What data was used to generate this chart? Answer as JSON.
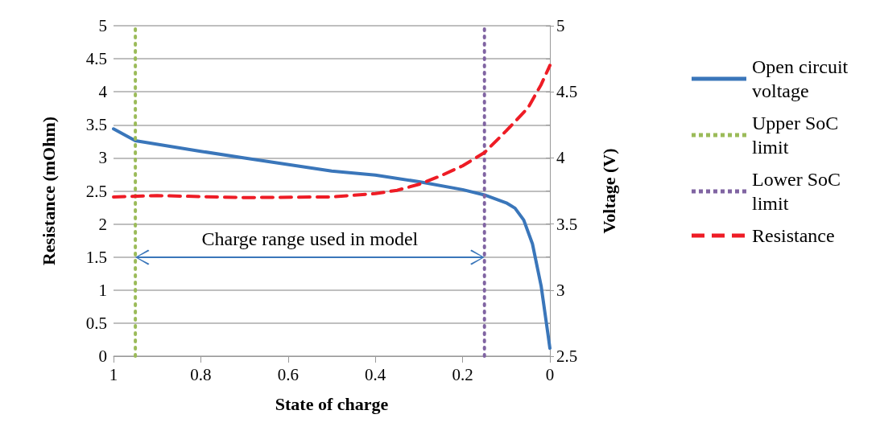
{
  "chart_data": {
    "type": "line",
    "xlabel": "State of charge",
    "ylabel": "Resistance (mOhm)",
    "y2label": "Voltage (V)",
    "xlim": [
      1,
      0
    ],
    "xticks": [
      1,
      0.8,
      0.6,
      0.4,
      0.2,
      0
    ],
    "ylim": [
      0,
      5
    ],
    "yticks": [
      0,
      0.5,
      1,
      1.5,
      2,
      2.5,
      3,
      3.5,
      4,
      4.5,
      5
    ],
    "y2lim": [
      2.5,
      5
    ],
    "y2ticks": [
      2.5,
      3,
      3.5,
      4,
      4.5,
      5
    ],
    "grid": "y",
    "legend": "right",
    "marker": "none",
    "series": [
      {
        "name": "Open circuit voltage",
        "color": "#3a76ba",
        "axis": "y2",
        "line_style": "solid",
        "x": [
          1,
          0.95,
          0.8,
          0.7,
          0.5,
          0.4,
          0.3,
          0.2,
          0.15,
          0.1,
          0.08,
          0.06,
          0.04,
          0.02,
          0.005,
          0
        ],
        "values": [
          4.22,
          4.13,
          4.05,
          4.0,
          3.9,
          3.87,
          3.82,
          3.76,
          3.72,
          3.66,
          3.62,
          3.53,
          3.35,
          3.03,
          2.68,
          2.56
        ]
      },
      {
        "name": "Upper SoC limit",
        "color": "#9bbb59",
        "axis": "y",
        "line_style": "dotted",
        "x": [
          0.95,
          0.95
        ],
        "values": [
          0,
          5
        ]
      },
      {
        "name": "Lower SoC limit",
        "color": "#8064a2",
        "axis": "y",
        "line_style": "dotted",
        "x": [
          0.15,
          0.15
        ],
        "values": [
          0,
          5
        ]
      },
      {
        "name": "Resistance",
        "color": "#ee1c25",
        "axis": "y",
        "line_style": "dashed",
        "x": [
          1,
          0.9,
          0.7,
          0.5,
          0.4,
          0.35,
          0.3,
          0.25,
          0.2,
          0.15,
          0.1,
          0.05,
          0.02,
          0
        ],
        "values": [
          2.41,
          2.43,
          2.4,
          2.41,
          2.46,
          2.51,
          2.6,
          2.73,
          2.88,
          3.08,
          3.41,
          3.76,
          4.11,
          4.4
        ]
      }
    ],
    "annotations": [
      "Charge range used in model"
    ]
  }
}
